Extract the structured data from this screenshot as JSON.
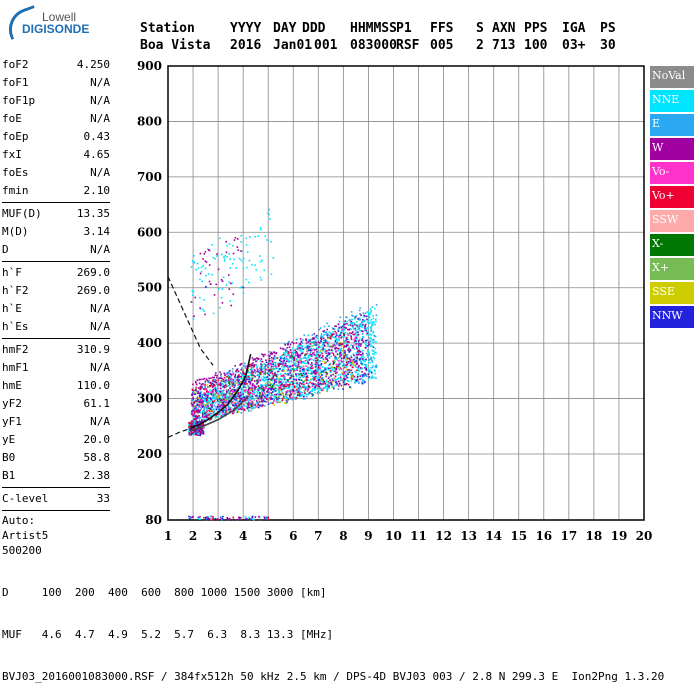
{
  "logo": {
    "line1": "Lowell",
    "line2": "DIGISONDE"
  },
  "header": {
    "labels": [
      "Station",
      "YYYY",
      "DAY",
      "DDD",
      "HHMMSS",
      "P1",
      "FFS",
      "S",
      "AXN",
      "PPS",
      "IGA",
      "PS"
    ],
    "values": [
      "Boa Vista",
      "2016",
      "Jan01",
      "001",
      "083000",
      "RSF",
      "005",
      "2",
      "713",
      "100",
      "03+",
      "30"
    ]
  },
  "params": [
    {
      "name": "foF2",
      "value": "4.250"
    },
    {
      "name": "foF1",
      "value": "N/A"
    },
    {
      "name": "foF1p",
      "value": "N/A"
    },
    {
      "name": "foE",
      "value": "N/A"
    },
    {
      "name": "foEp",
      "value": "0.43"
    },
    {
      "name": "fxI",
      "value": "4.65"
    },
    {
      "name": "foEs",
      "value": "N/A"
    },
    {
      "name": "fmin",
      "value": "2.10"
    },
    {
      "sep": true
    },
    {
      "name": "MUF(D)",
      "value": "13.35"
    },
    {
      "name": "M(D)",
      "value": "3.14"
    },
    {
      "name": "D",
      "value": "N/A"
    },
    {
      "sep": true
    },
    {
      "name": "h`F",
      "value": "269.0"
    },
    {
      "name": "h`F2",
      "value": "269.0"
    },
    {
      "name": "h`E",
      "value": "N/A"
    },
    {
      "name": "h`Es",
      "value": "N/A"
    },
    {
      "sep": true
    },
    {
      "name": "hmF2",
      "value": "310.9"
    },
    {
      "name": "hmF1",
      "value": "N/A"
    },
    {
      "name": "hmE",
      "value": "110.0"
    },
    {
      "name": "yF2",
      "value": "61.1"
    },
    {
      "name": "yF1",
      "value": "N/A"
    },
    {
      "name": "yE",
      "value": "20.0"
    },
    {
      "name": "B0",
      "value": "58.8"
    },
    {
      "name": "B1",
      "value": "2.38"
    },
    {
      "sep": true
    },
    {
      "name": "C-level",
      "value": "33"
    },
    {
      "sep": true
    },
    {
      "text": "Auto:"
    },
    {
      "text": "Artist5"
    },
    {
      "text": "500200"
    }
  ],
  "legend": [
    {
      "label": "NoVal",
      "color": "#8c8c8c"
    },
    {
      "label": "NNE",
      "color": "#00e5ff"
    },
    {
      "label": "E",
      "color": "#2aa8f2"
    },
    {
      "label": "W",
      "color": "#a000a0"
    },
    {
      "label": "Vo-",
      "color": "#ff33cc"
    },
    {
      "label": "Vo+",
      "color": "#ee0033"
    },
    {
      "label": "SSW",
      "color": "#ffaaaa"
    },
    {
      "label": "X-",
      "color": "#007700"
    },
    {
      "label": "X+",
      "color": "#77bb55"
    },
    {
      "label": "SSE",
      "color": "#cccc00"
    },
    {
      "label": "NNW",
      "color": "#2222dd"
    }
  ],
  "footer": {
    "line1": "D     100  200  400  600  800 1000 1500 3000 [km]",
    "line2": "MUF   4.6  4.7  4.9  5.2  5.7  6.3  8.3 13.3 [MHz]",
    "line3": "BVJ03_2016001083000.RSF / 384fx512h 50 kHz 2.5 km / DPS-4D BVJ03 003 / 2.8 N 299.3 E  Ion2Png 1.3.20"
  },
  "chart_data": {
    "type": "scatter",
    "xlim": [
      1,
      20
    ],
    "ylim": [
      80,
      900
    ],
    "x_ticks": [
      1,
      2,
      3,
      4,
      5,
      6,
      7,
      8,
      9,
      10,
      11,
      12,
      13,
      14,
      15,
      16,
      17,
      18,
      19,
      20
    ],
    "y_ticks": [
      80,
      200,
      300,
      400,
      500,
      600,
      700,
      800,
      900
    ],
    "grid": true,
    "legend_placement": "right",
    "traces": [
      {
        "name": "O-trace",
        "points": [
          [
            1.9,
            248
          ],
          [
            2.2,
            252
          ],
          [
            2.6,
            262
          ],
          [
            3.0,
            275
          ],
          [
            3.4,
            290
          ],
          [
            3.8,
            315
          ],
          [
            4.1,
            340
          ],
          [
            4.3,
            380
          ]
        ]
      },
      {
        "name": "X-trace",
        "points": [
          [
            1.9,
            242
          ],
          [
            2.4,
            250
          ],
          [
            3.0,
            262
          ],
          [
            3.6,
            278
          ],
          [
            4.0,
            295
          ],
          [
            4.2,
            305
          ]
        ]
      },
      {
        "name": "profile",
        "points": [
          [
            1.0,
            230
          ],
          [
            1.5,
            240
          ],
          [
            2.0,
            248
          ],
          [
            2.5,
            258
          ]
        ]
      },
      {
        "name": "profile-upper",
        "points": [
          [
            1.0,
            520
          ],
          [
            1.4,
            480
          ],
          [
            1.8,
            440
          ],
          [
            2.3,
            390
          ],
          [
            2.8,
            360
          ]
        ]
      }
    ],
    "clusters": [
      {
        "color": "#00e5ff",
        "count": 1500,
        "x": [
          1.9,
          9.3
        ],
        "y_lo": [
          255,
          340
        ],
        "y_hi": [
          300,
          470
        ]
      },
      {
        "color": "#2aa8f2",
        "count": 600,
        "x": [
          1.9,
          9.3
        ],
        "y_lo": [
          255,
          330
        ],
        "y_hi": [
          320,
          480
        ]
      },
      {
        "color": "#a000a0",
        "count": 800,
        "x": [
          1.9,
          9.0
        ],
        "y_lo": [
          255,
          340
        ],
        "y_hi": [
          330,
          460
        ]
      },
      {
        "color": "#ee0033",
        "count": 250,
        "x": [
          1.9,
          8.6
        ],
        "y_lo": [
          255,
          330
        ],
        "y_hi": [
          320,
          440
        ]
      },
      {
        "color": "#ff33cc",
        "count": 180,
        "x": [
          1.9,
          8.5
        ],
        "y_lo": [
          255,
          330
        ],
        "y_hi": [
          320,
          440
        ]
      },
      {
        "color": "#2222dd",
        "count": 180,
        "x": [
          1.9,
          9.2
        ],
        "y_lo": [
          255,
          330
        ],
        "y_hi": [
          320,
          460
        ]
      },
      {
        "color": "#cccc00",
        "count": 80,
        "x": [
          2.0,
          8.5
        ],
        "y_lo": [
          255,
          320
        ],
        "y_hi": [
          320,
          430
        ]
      },
      {
        "color": "#77bb55",
        "count": 80,
        "x": [
          2.0,
          8.5
        ],
        "y_lo": [
          255,
          320
        ],
        "y_hi": [
          320,
          430
        ]
      },
      {
        "color": "#007700",
        "count": 50,
        "x": [
          2.0,
          8.0
        ],
        "y_lo": [
          255,
          320
        ],
        "y_hi": [
          320,
          420
        ]
      },
      {
        "color": "#00e5ff",
        "count": 70,
        "x": [
          1.9,
          4.0
        ],
        "y_lo": [
          440,
          470
        ],
        "y_hi": [
          560,
          620
        ]
      },
      {
        "color": "#a000a0",
        "count": 40,
        "x": [
          1.9,
          4.0
        ],
        "y_lo": [
          440,
          460
        ],
        "y_hi": [
          560,
          600
        ]
      },
      {
        "color": "#00e5ff",
        "count": 30,
        "x": [
          3.8,
          5.2
        ],
        "y_lo": [
          500,
          520
        ],
        "y_hi": [
          600,
          650
        ]
      }
    ],
    "dense_low": {
      "x": [
        1.8,
        2.4
      ],
      "y": [
        235,
        260
      ]
    },
    "bottom_strip": {
      "x": [
        1.8,
        5.0
      ],
      "y": [
        82,
        88
      ]
    }
  }
}
